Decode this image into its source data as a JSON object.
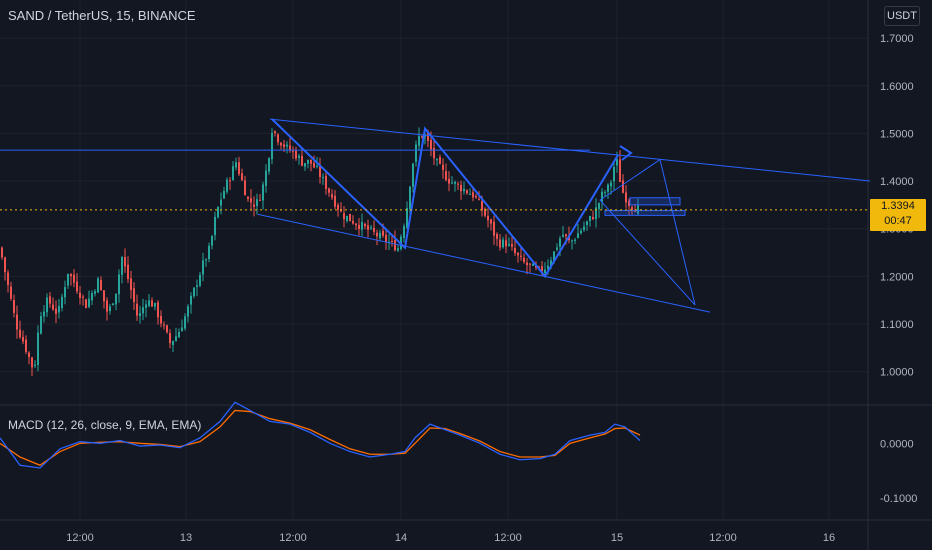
{
  "header": {
    "symbol_title": "SAND / TetherUS, 15, BINANCE",
    "currency_button": "USDT"
  },
  "price_tag": {
    "price": "1.3394",
    "countdown": "00:47"
  },
  "macd": {
    "title": "MACD (12, 26, close, 9, EMA, EMA)",
    "macd_color": "#2962ff",
    "signal_color": "#ff6d00"
  },
  "colors": {
    "up": "#26a69a",
    "down": "#ef5350",
    "drawing": "#2962ff",
    "last_price": "#f0b90b"
  },
  "chart_data": {
    "type": "candlestick",
    "symbol": "SAND / TetherUS",
    "interval": "15",
    "exchange": "BINANCE",
    "price_axis_ticks": [
      "1.7000",
      "1.6000",
      "1.5000",
      "1.4000",
      "1.3000",
      "1.2000",
      "1.1000",
      "1.0000"
    ],
    "price_ylim": [
      0.93,
      1.78
    ],
    "macd_axis_ticks": [
      "0.0000",
      "-0.1000"
    ],
    "macd_ylim": [
      -0.14,
      0.07
    ],
    "time_ticks": [
      "12:00",
      "13",
      "12:00",
      "14",
      "12:00",
      "15",
      "12:00",
      "16"
    ],
    "last_price": 1.3394,
    "close_path": [
      [
        0,
        1.26
      ],
      [
        8,
        1.18
      ],
      [
        16,
        1.1
      ],
      [
        24,
        1.06
      ],
      [
        34,
        1.0
      ],
      [
        40,
        1.12
      ],
      [
        48,
        1.15
      ],
      [
        58,
        1.12
      ],
      [
        68,
        1.21
      ],
      [
        76,
        1.18
      ],
      [
        86,
        1.14
      ],
      [
        98,
        1.19
      ],
      [
        108,
        1.12
      ],
      [
        116,
        1.17
      ],
      [
        122,
        1.24
      ],
      [
        130,
        1.18
      ],
      [
        138,
        1.11
      ],
      [
        146,
        1.15
      ],
      [
        154,
        1.14
      ],
      [
        162,
        1.1
      ],
      [
        170,
        1.06
      ],
      [
        178,
        1.08
      ],
      [
        186,
        1.12
      ],
      [
        194,
        1.17
      ],
      [
        202,
        1.22
      ],
      [
        210,
        1.26
      ],
      [
        216,
        1.33
      ],
      [
        222,
        1.37
      ],
      [
        230,
        1.41
      ],
      [
        236,
        1.44
      ],
      [
        242,
        1.4
      ],
      [
        248,
        1.36
      ],
      [
        256,
        1.35
      ],
      [
        262,
        1.38
      ],
      [
        268,
        1.44
      ],
      [
        272,
        1.51
      ],
      [
        278,
        1.49
      ],
      [
        286,
        1.47
      ],
      [
        294,
        1.46
      ],
      [
        302,
        1.44
      ],
      [
        310,
        1.44
      ],
      [
        318,
        1.42
      ],
      [
        326,
        1.39
      ],
      [
        334,
        1.36
      ],
      [
        342,
        1.33
      ],
      [
        350,
        1.32
      ],
      [
        358,
        1.31
      ],
      [
        366,
        1.3
      ],
      [
        374,
        1.29
      ],
      [
        382,
        1.28
      ],
      [
        390,
        1.27
      ],
      [
        398,
        1.26
      ],
      [
        406,
        1.33
      ],
      [
        412,
        1.43
      ],
      [
        418,
        1.49
      ],
      [
        424,
        1.5
      ],
      [
        430,
        1.47
      ],
      [
        436,
        1.44
      ],
      [
        442,
        1.42
      ],
      [
        450,
        1.4
      ],
      [
        458,
        1.39
      ],
      [
        466,
        1.38
      ],
      [
        474,
        1.37
      ],
      [
        482,
        1.34
      ],
      [
        490,
        1.31
      ],
      [
        498,
        1.27
      ],
      [
        506,
        1.27
      ],
      [
        514,
        1.25
      ],
      [
        522,
        1.23
      ],
      [
        530,
        1.22
      ],
      [
        538,
        1.21
      ],
      [
        546,
        1.22
      ],
      [
        554,
        1.25
      ],
      [
        562,
        1.29
      ],
      [
        570,
        1.27
      ],
      [
        578,
        1.29
      ],
      [
        586,
        1.31
      ],
      [
        594,
        1.33
      ],
      [
        602,
        1.37
      ],
      [
        610,
        1.39
      ],
      [
        616,
        1.45
      ],
      [
        622,
        1.38
      ],
      [
        630,
        1.35
      ],
      [
        640,
        1.34
      ]
    ],
    "macd_line": [
      [
        0,
        0.01
      ],
      [
        20,
        -0.04
      ],
      [
        40,
        -0.045
      ],
      [
        60,
        -0.01
      ],
      [
        80,
        0.003
      ],
      [
        100,
        0.0
      ],
      [
        120,
        0.005
      ],
      [
        140,
        -0.005
      ],
      [
        160,
        -0.003
      ],
      [
        180,
        -0.008
      ],
      [
        200,
        0.01
      ],
      [
        220,
        0.04
      ],
      [
        235,
        0.075
      ],
      [
        250,
        0.06
      ],
      [
        270,
        0.04
      ],
      [
        290,
        0.035
      ],
      [
        310,
        0.02
      ],
      [
        330,
        0.0
      ],
      [
        350,
        -0.015
      ],
      [
        370,
        -0.025
      ],
      [
        390,
        -0.02
      ],
      [
        405,
        -0.015
      ],
      [
        415,
        0.01
      ],
      [
        430,
        0.035
      ],
      [
        445,
        0.025
      ],
      [
        460,
        0.015
      ],
      [
        480,
        0.0
      ],
      [
        500,
        -0.02
      ],
      [
        520,
        -0.03
      ],
      [
        540,
        -0.028
      ],
      [
        555,
        -0.02
      ],
      [
        570,
        0.005
      ],
      [
        590,
        0.015
      ],
      [
        605,
        0.02
      ],
      [
        615,
        0.035
      ],
      [
        625,
        0.03
      ],
      [
        640,
        0.005
      ]
    ],
    "signal_line": [
      [
        0,
        0.0
      ],
      [
        20,
        -0.025
      ],
      [
        40,
        -0.04
      ],
      [
        60,
        -0.015
      ],
      [
        80,
        0.0
      ],
      [
        100,
        0.002
      ],
      [
        120,
        0.003
      ],
      [
        140,
        0.0
      ],
      [
        160,
        -0.002
      ],
      [
        180,
        -0.006
      ],
      [
        200,
        0.003
      ],
      [
        220,
        0.03
      ],
      [
        235,
        0.06
      ],
      [
        250,
        0.058
      ],
      [
        270,
        0.045
      ],
      [
        290,
        0.037
      ],
      [
        310,
        0.025
      ],
      [
        330,
        0.007
      ],
      [
        350,
        -0.01
      ],
      [
        370,
        -0.02
      ],
      [
        390,
        -0.02
      ],
      [
        405,
        -0.018
      ],
      [
        415,
        0.0
      ],
      [
        430,
        0.028
      ],
      [
        445,
        0.027
      ],
      [
        460,
        0.018
      ],
      [
        480,
        0.004
      ],
      [
        500,
        -0.015
      ],
      [
        520,
        -0.025
      ],
      [
        540,
        -0.025
      ],
      [
        555,
        -0.022
      ],
      [
        570,
        0.0
      ],
      [
        590,
        0.01
      ],
      [
        605,
        0.017
      ],
      [
        615,
        0.027
      ],
      [
        625,
        0.028
      ],
      [
        640,
        0.015
      ]
    ],
    "drawings": {
      "horizontal_line_price": 1.465,
      "channel_upper": [
        [
          270,
          1.53
        ],
        [
          870,
          1.4
        ]
      ],
      "channel_lower": [
        [
          258,
          1.33
        ],
        [
          710,
          1.125
        ]
      ],
      "zigzag": [
        [
          272,
          1.53
        ],
        [
          405,
          1.26
        ],
        [
          425,
          1.51
        ],
        [
          545,
          1.2
        ],
        [
          618,
          1.455
        ]
      ],
      "triangle": [
        [
          600,
          1.36
        ],
        [
          660,
          1.445
        ],
        [
          695,
          1.14
        ]
      ],
      "boxes": [
        [
          630,
          1.365,
          680,
          1.35
        ],
        [
          605,
          1.338,
          685,
          1.328
        ]
      ]
    }
  }
}
